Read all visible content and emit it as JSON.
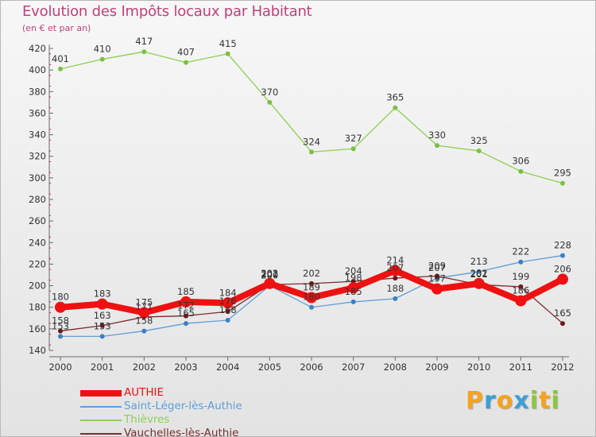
{
  "title": "Evolution des Impôts locaux par Habitant",
  "subtitle": "(en € et par an)",
  "chart_data": {
    "type": "line",
    "title": "Evolution des Impôts locaux par Habitant",
    "subtitle": "(en € et par an)",
    "xlabel": "",
    "ylabel": "",
    "categories": [
      "2000",
      "2001",
      "2002",
      "2003",
      "2004",
      "2005",
      "2006",
      "2007",
      "2008",
      "2009",
      "2010",
      "2011",
      "2012"
    ],
    "ylim": [
      140,
      420
    ],
    "yticks": [
      140,
      160,
      180,
      200,
      220,
      240,
      260,
      280,
      300,
      320,
      340,
      360,
      380,
      400,
      420
    ],
    "grid": false,
    "legend_position": "bottom-left",
    "series": [
      {
        "name": "Thièvres",
        "color": "#8cd053",
        "point_color": "#7cc042",
        "width": 1.3,
        "values": [
          401,
          410,
          417,
          407,
          415,
          370,
          324,
          327,
          365,
          330,
          325,
          306,
          295
        ]
      },
      {
        "name": "Saint-Léger-lès-Authie",
        "color": "#5f9fd6",
        "point_color": "#3d7fc4",
        "width": 1.3,
        "values": [
          153,
          153,
          158,
          165,
          168,
          200,
          180,
          185,
          188,
          207,
          213,
          222,
          228
        ]
      },
      {
        "name": "Vauchelles-lès-Authie",
        "color": "#7d2a2a",
        "point_color": "#6a1a1a",
        "width": 1.3,
        "values": [
          158,
          163,
          171,
          172,
          176,
          201,
          202,
          204,
          207,
          209,
          201,
          199,
          165
        ]
      },
      {
        "name": "AUTHIE",
        "color": "#ee1111",
        "point_color": "#ee1111",
        "width": 8,
        "values": [
          180,
          183,
          175,
          185,
          184,
          202,
          189,
          198,
          214,
          197,
          202,
          186,
          206
        ]
      }
    ],
    "legend_order": [
      "AUTHIE",
      "Saint-Léger-lès-Authie",
      "Thièvres",
      "Vauchelles-lès-Authie"
    ]
  },
  "logo": {
    "letters": [
      "P",
      "r",
      "o",
      "x",
      "i",
      "t",
      "i"
    ],
    "colors": [
      "#f7a21c",
      "#3aa0d8",
      "#f7a21c",
      "#3aa0d8",
      "#8cc63f",
      "#f7a21c",
      "#8cc63f"
    ]
  }
}
